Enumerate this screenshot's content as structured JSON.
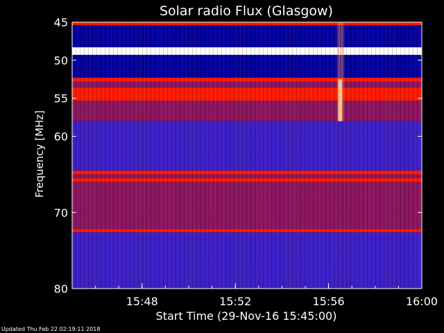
{
  "chart_data": {
    "type": "heatmap",
    "title": "Solar radio Flux (Glasgow)",
    "xlabel": "Start Time (29-Nov-16 15:45:00)",
    "ylabel": "Frequency [MHz]",
    "x_unit": "minutes after 15:45",
    "xlim": [
      0,
      15
    ],
    "ylim": [
      45,
      80
    ],
    "y_inverted": true,
    "x_tick_labels": [
      "15:48",
      "15:52",
      "15:56",
      "16:00"
    ],
    "x_tick_values": [
      3,
      7,
      11,
      15
    ],
    "y_ticks": [
      45,
      50,
      55,
      60,
      70,
      80
    ],
    "grid": false,
    "colors": {
      "background": "#000000",
      "low": "#3a1fc8",
      "mid": "#8a1560",
      "high": "#ff1a00",
      "peak": "#ffffff",
      "deep": "#0000a0"
    },
    "bands": [
      {
        "from": 45.0,
        "to": 45.4,
        "level": "high"
      },
      {
        "from": 45.4,
        "to": 48.3,
        "level": "deep"
      },
      {
        "from": 48.3,
        "to": 49.3,
        "level": "peak"
      },
      {
        "from": 49.3,
        "to": 52.3,
        "level": "deep"
      },
      {
        "from": 52.3,
        "to": 52.8,
        "level": "high"
      },
      {
        "from": 52.8,
        "to": 53.6,
        "level": "mid"
      },
      {
        "from": 53.6,
        "to": 55.3,
        "level": "high"
      },
      {
        "from": 55.3,
        "to": 58.0,
        "level": "mid"
      },
      {
        "from": 58.0,
        "to": 64.5,
        "level": "low"
      },
      {
        "from": 64.5,
        "to": 65.0,
        "level": "high"
      },
      {
        "from": 65.0,
        "to": 65.5,
        "level": "mid"
      },
      {
        "from": 65.5,
        "to": 66.0,
        "level": "high"
      },
      {
        "from": 66.0,
        "to": 72.2,
        "level": "mid"
      },
      {
        "from": 72.2,
        "to": 72.6,
        "level": "high"
      },
      {
        "from": 72.6,
        "to": 80.0,
        "level": "low"
      }
    ],
    "burst": {
      "time": 11.5,
      "freq_from": 45,
      "freq_to": 58
    }
  },
  "footer": {
    "updated": "Updated Thu Feb 22 02:19:11 2018"
  }
}
